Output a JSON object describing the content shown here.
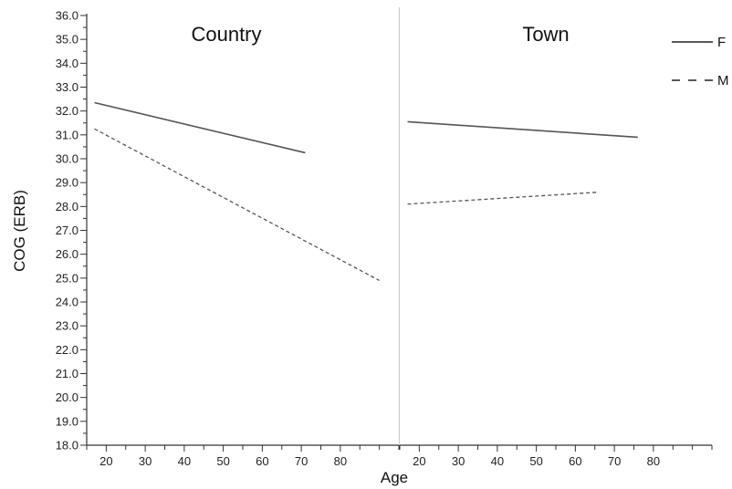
{
  "chart_data": {
    "type": "line",
    "xlabel": "Age",
    "ylabel": "COG (ERB)",
    "ylim": [
      18.0,
      36.0
    ],
    "y_ticks": [
      "18.0",
      "19.0",
      "20.0",
      "21.0",
      "22.0",
      "23.0",
      "24.0",
      "25.0",
      "26.0",
      "27.0",
      "28.0",
      "29.0",
      "30.0",
      "31.0",
      "32.0",
      "33.0",
      "34.0",
      "35.0",
      "36.0"
    ],
    "x_ticks": [
      20,
      30,
      40,
      50,
      60,
      70,
      80
    ],
    "x_tick_labels": [
      "20",
      "30",
      "40",
      "50",
      "60",
      "70",
      "80"
    ],
    "xlim": [
      15,
      95
    ],
    "legend": {
      "position": "top-right",
      "entries": [
        {
          "name": "F",
          "style": "solid"
        },
        {
          "name": "M",
          "style": "dashed"
        }
      ]
    },
    "panels": [
      {
        "title": "Country",
        "series": [
          {
            "name": "F",
            "style": "solid",
            "points": [
              [
                17,
                32.35
              ],
              [
                71,
                30.25
              ]
            ]
          },
          {
            "name": "M",
            "style": "dashed",
            "points": [
              [
                17,
                31.25
              ],
              [
                90,
                24.9
              ]
            ]
          }
        ]
      },
      {
        "title": "Town",
        "series": [
          {
            "name": "F",
            "style": "solid",
            "points": [
              [
                17,
                31.55
              ],
              [
                76,
                30.9
              ]
            ]
          },
          {
            "name": "M",
            "style": "dashed",
            "points": [
              [
                17,
                28.1
              ],
              [
                66,
                28.6
              ]
            ]
          }
        ]
      }
    ],
    "colors": {
      "axis": "#333333",
      "line": "#555555",
      "divider": "#cccccc"
    }
  }
}
